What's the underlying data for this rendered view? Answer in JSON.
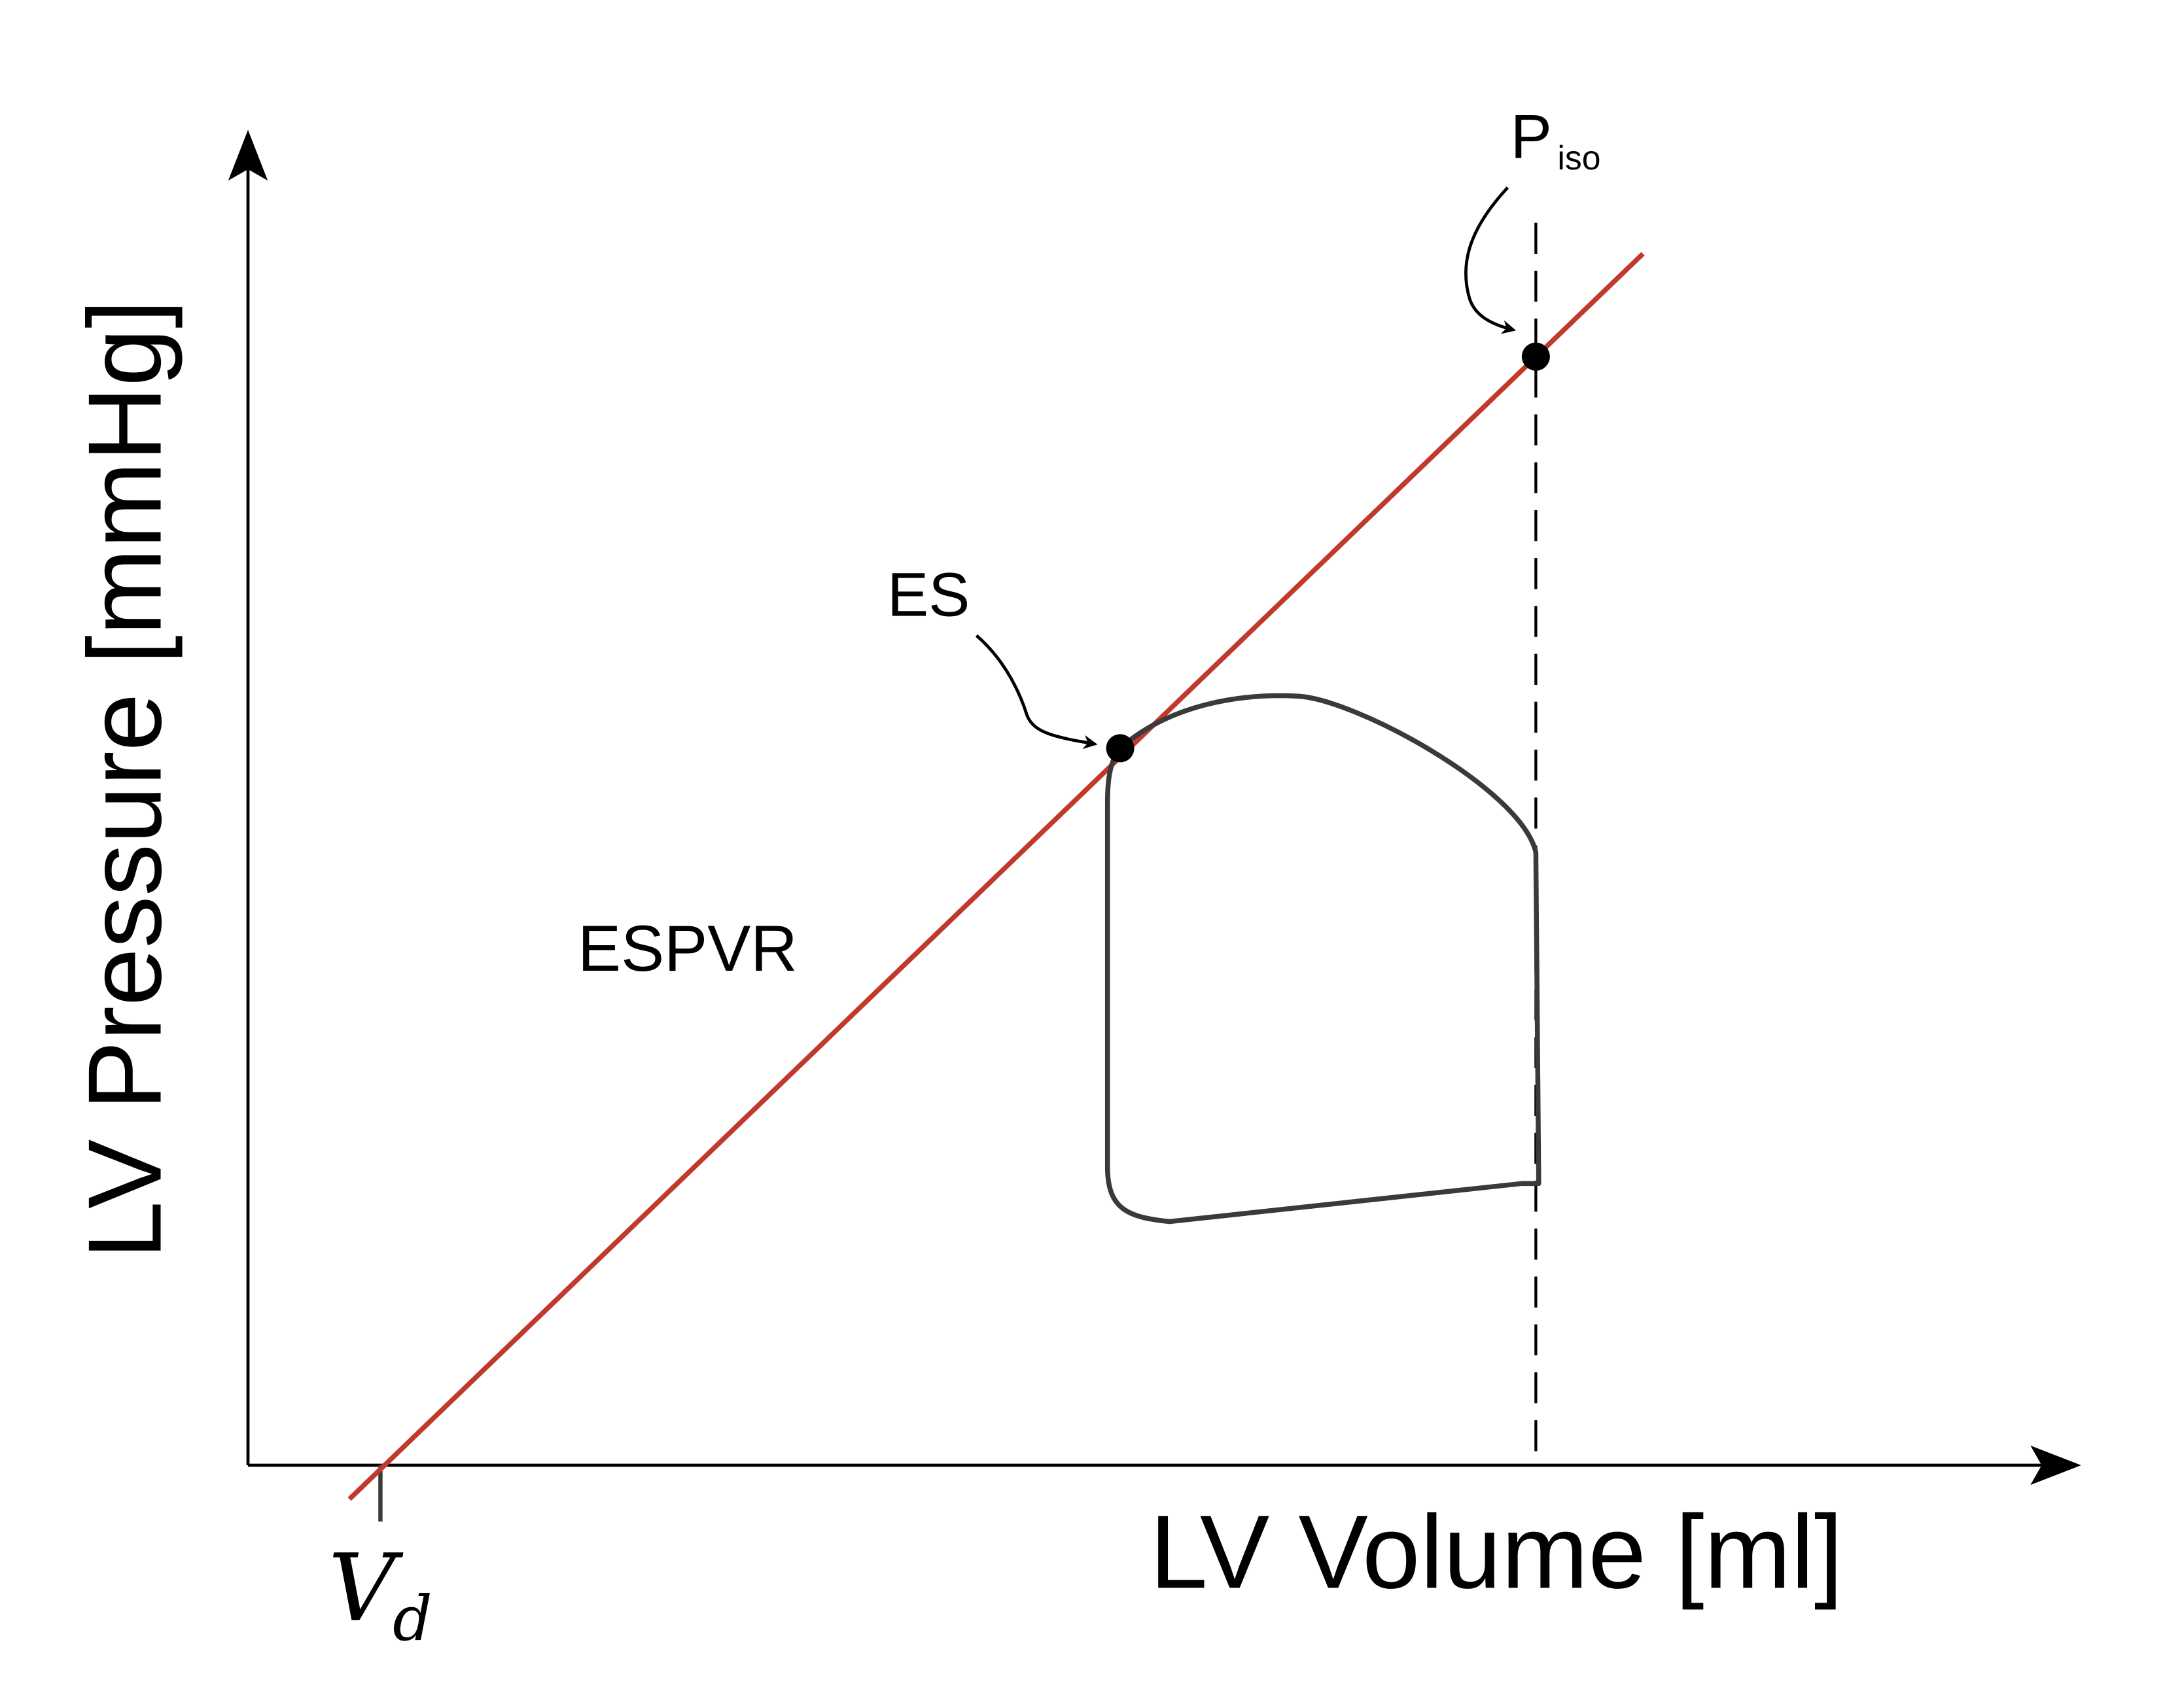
{
  "diagram": {
    "y_axis_label": "LV Pressure [mmHg]",
    "x_axis_label": "LV Volume [ml]",
    "line_label": "ESPVR",
    "es_label": "ES",
    "piso_label_main": "P",
    "piso_label_sub": "iso",
    "vd_label_main": "V",
    "vd_label_sub": "d",
    "colors": {
      "espvr_line": "#c0392b",
      "loop": "#3a3a3a",
      "axes": "#000000",
      "points": "#000000"
    }
  }
}
